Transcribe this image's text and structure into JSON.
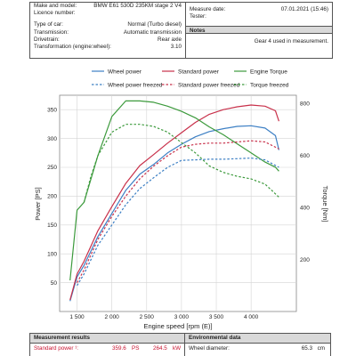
{
  "vehicle_info": {
    "make_model_label": "Make and model:",
    "make_model_value": "BMW E61 530D 235KM stage 2 V4",
    "licence_label": "Licence number:",
    "licence_value": "",
    "car_type_label": "Type of car:",
    "car_type_value": "Normal (Turbo diesel)",
    "transmission_label": "Transmission:",
    "transmission_value": "Automatic transmission",
    "drivetrain_label": "Drivetrain:",
    "drivetrain_value": "Rear axle",
    "ratio_label": "Transformation (engine:wheel):",
    "ratio_value": "3.10"
  },
  "measure_info": {
    "date_label": "Measure date:",
    "date_value": "07.01.2021 (15:46)",
    "tester_label": "Tester:",
    "tester_value": "",
    "notes_heading": "Notes",
    "notes_text": "Gear 4 used in measurement."
  },
  "legend": {
    "wheel_power": "Wheel power",
    "standard_power": "Standard power",
    "engine_torque": "Engine Torque",
    "wheel_power_freezed": "Wheel power freezed",
    "standard_power_freezed": "Standard power freezed",
    "torque_freezed": "Torque freezed"
  },
  "chart_data": {
    "type": "line",
    "xlabel": "Engine speed [rpm (E)]",
    "ylabel_left": "Power [PS]",
    "ylabel_right": "Torque [Nm]",
    "xlim": [
      1250,
      4650
    ],
    "ylim_left": [
      0,
      375
    ],
    "ylim_right": [
      0,
      832
    ],
    "x_ticks": [
      1500,
      2000,
      2500,
      3000,
      3500,
      4000
    ],
    "x_tick_labels": [
      "1 500",
      "2 000",
      "2 500",
      "3 000",
      "3 500",
      "4 000"
    ],
    "y_ticks_left": [
      50,
      100,
      150,
      200,
      250,
      300,
      350
    ],
    "y_ticks_right": [
      200,
      400,
      600,
      800
    ],
    "grid": true,
    "legend_position": "top",
    "colors": {
      "wheel_power": "#3c7fc4",
      "standard_power": "#c8304a",
      "engine_torque": "#3c9a3c"
    },
    "series": [
      {
        "name": "Wheel power",
        "axis": "left",
        "color": "#3c7fc4",
        "dashed": false,
        "x": [
          1400,
          1500,
          1600,
          1800,
          2000,
          2200,
          2400,
          2600,
          2800,
          3000,
          3200,
          3400,
          3600,
          3800,
          4000,
          4200,
          4350,
          4400
        ],
        "y": [
          18,
          60,
          80,
          130,
          170,
          210,
          238,
          255,
          275,
          290,
          303,
          312,
          317,
          321,
          322,
          318,
          305,
          280
        ]
      },
      {
        "name": "Standard power",
        "axis": "left",
        "color": "#c8304a",
        "dashed": false,
        "x": [
          1400,
          1500,
          1600,
          1800,
          2000,
          2200,
          2400,
          2600,
          2800,
          3000,
          3200,
          3400,
          3600,
          3800,
          4000,
          4200,
          4350,
          4400
        ],
        "y": [
          20,
          65,
          87,
          140,
          182,
          222,
          253,
          272,
          292,
          310,
          328,
          342,
          350,
          355,
          358,
          356,
          348,
          330
        ]
      },
      {
        "name": "Engine Torque",
        "axis": "right",
        "color": "#3c9a3c",
        "dashed": false,
        "x": [
          1400,
          1500,
          1600,
          1800,
          2000,
          2200,
          2400,
          2600,
          2800,
          3000,
          3200,
          3400,
          3600,
          3800,
          4000,
          4200,
          4350,
          4400
        ],
        "y": [
          120,
          390,
          420,
          600,
          750,
          810,
          810,
          805,
          790,
          770,
          745,
          710,
          680,
          645,
          610,
          575,
          555,
          540
        ]
      },
      {
        "name": "Wheel power freezed",
        "axis": "left",
        "color": "#3c7fc4",
        "dashed": true,
        "x": [
          1500,
          1600,
          1800,
          2000,
          2200,
          2400,
          2600,
          2800,
          3000,
          3200,
          3400,
          3600,
          3800,
          4000,
          4200,
          4400
        ],
        "y": [
          45,
          65,
          115,
          150,
          185,
          213,
          232,
          250,
          262,
          263,
          264,
          264,
          265,
          266,
          263,
          250
        ]
      },
      {
        "name": "Standard power freezed",
        "axis": "left",
        "color": "#c8304a",
        "dashed": true,
        "x": [
          1500,
          1600,
          1800,
          2000,
          2200,
          2400,
          2600,
          2800,
          3000,
          3200,
          3400,
          3600,
          3800,
          4000,
          4200,
          4400
        ],
        "y": [
          50,
          72,
          125,
          165,
          200,
          230,
          252,
          270,
          285,
          290,
          292,
          292,
          294,
          296,
          294,
          282
        ]
      },
      {
        "name": "Torque freezed",
        "axis": "right",
        "color": "#3c9a3c",
        "dashed": true,
        "x": [
          1600,
          1700,
          1800,
          2000,
          2200,
          2400,
          2600,
          2800,
          3000,
          3200,
          3400,
          3600,
          3800,
          4000,
          4200,
          4400
        ],
        "y": [
          420,
          520,
          600,
          690,
          720,
          720,
          712,
          690,
          650,
          610,
          560,
          535,
          520,
          510,
          490,
          440
        ]
      }
    ]
  },
  "results": {
    "heading": "Measurement results",
    "standard_power_label": "Standard power ¹:",
    "standard_power_ps": "359.6",
    "unit_ps": "PS",
    "standard_power_kw": "264.5",
    "unit_kw": "kW"
  },
  "environment": {
    "heading": "Environmental data",
    "wheel_diameter_label": "Wheel diameter:",
    "wheel_diameter_value": "65.3",
    "wheel_diameter_unit": "cm"
  }
}
